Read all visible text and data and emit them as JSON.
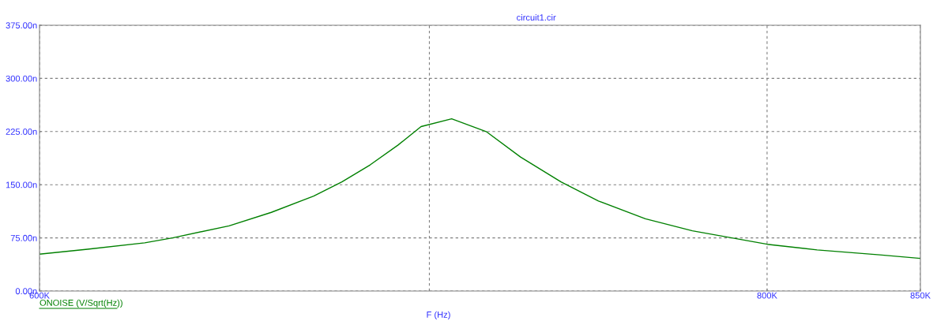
{
  "chart_data": {
    "type": "line",
    "title": "circuit1.cir",
    "xlabel": "F (Hz)",
    "log": "x",
    "x": [
      600,
      611.5,
      625.5,
      632.4,
      646.7,
      657.6,
      668.7,
      676.2,
      683.8,
      691.4,
      697.7,
      706.2,
      715.9,
      725.7,
      737.4,
      748.4,
      762.4,
      776.7,
      800,
      816,
      836.4,
      850
    ],
    "series": [
      {
        "name": "ONOISE (V/Sqrt(Hz))",
        "color": "#008000",
        "values": [
          52,
          59,
          68,
          75,
          92,
          111,
          134,
          154,
          178,
          206,
          232,
          243,
          225,
          189,
          154,
          127,
          102,
          85,
          66,
          58,
          51,
          46
        ]
      }
    ],
    "xlim": [
      600,
      850
    ],
    "xticks": [
      {
        "value": 600,
        "label": "600K"
      },
      {
        "value": 700,
        "label": null
      },
      {
        "value": 800,
        "label": "800K"
      },
      {
        "value": 850,
        "label": "850K"
      }
    ],
    "ylim": [
      0,
      375
    ],
    "yticks": [
      {
        "value": 0,
        "label": "0.00n"
      },
      {
        "value": 75,
        "label": "75.00n"
      },
      {
        "value": 150,
        "label": "150.00n"
      },
      {
        "value": 225,
        "label": "225.00n"
      },
      {
        "value": 300,
        "label": "300.00n"
      },
      {
        "value": 375,
        "label": "375.00n"
      }
    ],
    "grid": true,
    "legend": "bottom left",
    "line_style": "solid",
    "marker": "none"
  }
}
